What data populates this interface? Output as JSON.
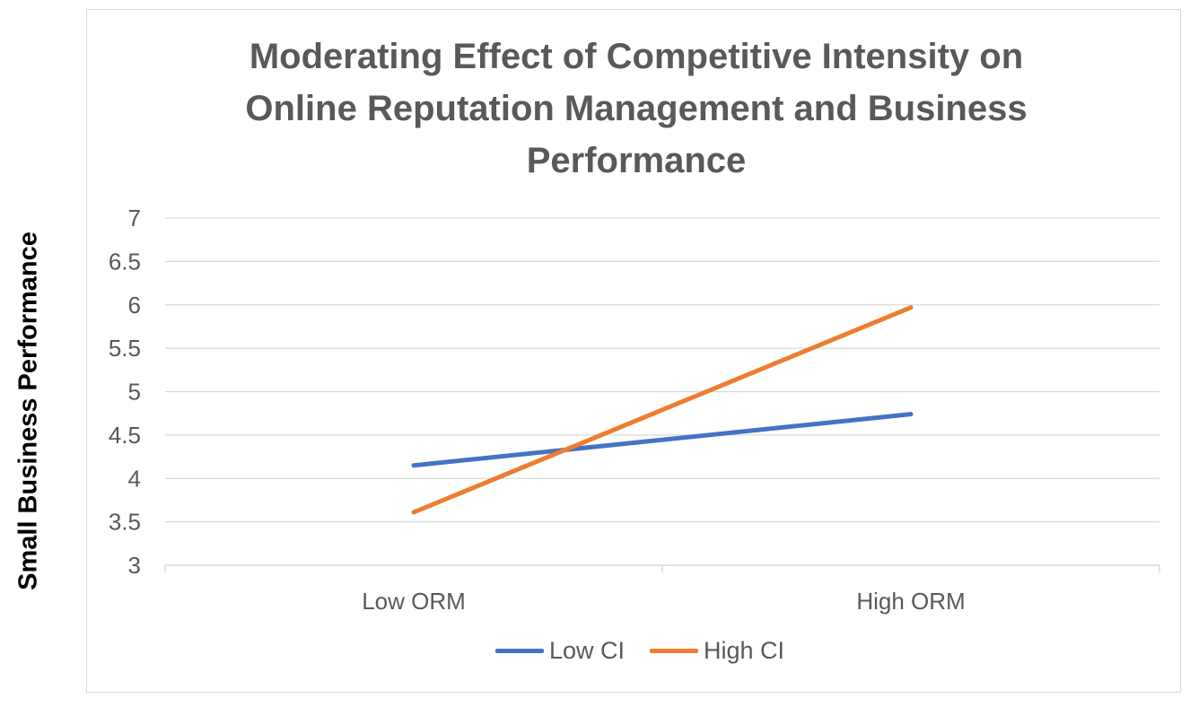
{
  "colors": {
    "low_ci": "#4472c4",
    "high_ci": "#ed7d31",
    "grid": "#d9d9d9",
    "text": "#595959"
  },
  "chart_data": {
    "type": "line",
    "title_lines": [
      "Moderating Effect of Competitive Intensity on",
      "Online Reputation Management and Business",
      "Performance"
    ],
    "xlabel": "",
    "ylabel": "Small Business Performance",
    "categories": [
      "Low ORM",
      "High ORM"
    ],
    "ylim": [
      3,
      7
    ],
    "yticks": [
      "3",
      "3.5",
      "4",
      "4.5",
      "5",
      "5.5",
      "6",
      "6.5",
      "7"
    ],
    "grid": true,
    "legend_position": "bottom",
    "series": [
      {
        "name": "Low CI",
        "values": [
          4.15,
          4.74
        ]
      },
      {
        "name": "High CI",
        "values": [
          3.61,
          5.97
        ]
      }
    ]
  }
}
